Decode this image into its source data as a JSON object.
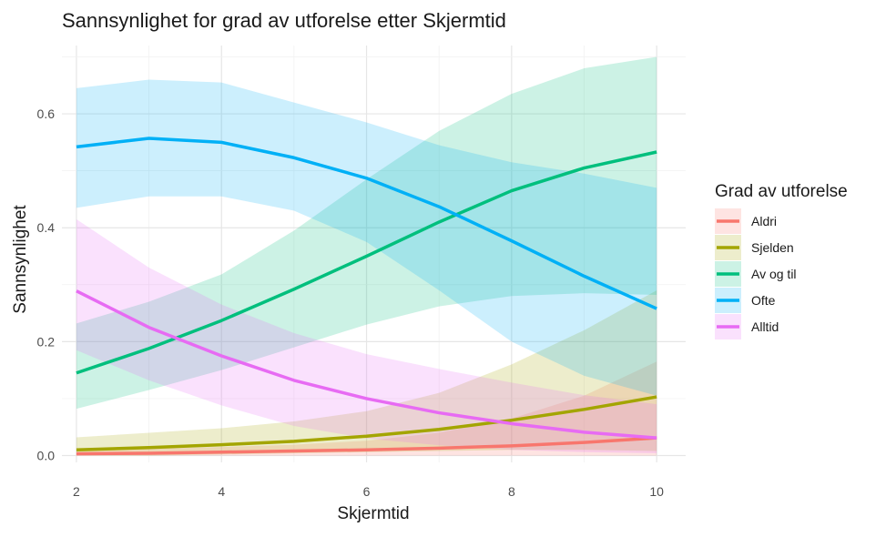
{
  "chart_data": {
    "type": "line",
    "title": "Sannsynlighet for grad av utforelse etter Skjermtid",
    "xlabel": "Skjermtid",
    "ylabel": "Sannsynlighet",
    "xlim": [
      1.8,
      10.4
    ],
    "ylim": [
      -0.012,
      0.72
    ],
    "xticks": [
      2,
      4,
      6,
      8,
      10
    ],
    "yticks": [
      0.0,
      0.2,
      0.4,
      0.6
    ],
    "ytick_labels": [
      "0.0",
      "0.2",
      "0.4",
      "0.6"
    ],
    "grid": true,
    "legend": {
      "title": "Grad av utforelse",
      "position": "right"
    },
    "x": [
      2,
      3,
      4,
      5,
      6,
      7,
      8,
      9,
      10
    ],
    "series": [
      {
        "name": "Aldri",
        "color": "#F8766D",
        "values": [
          0.003,
          0.004,
          0.006,
          0.008,
          0.01,
          0.013,
          0.017,
          0.023,
          0.031
        ],
        "lower": [
          0.0,
          0.0,
          0.0,
          0.0,
          0.0,
          0.0,
          0.0,
          0.0,
          0.0
        ],
        "upper": [
          0.01,
          0.012,
          0.015,
          0.019,
          0.026,
          0.04,
          0.065,
          0.105,
          0.165
        ]
      },
      {
        "name": "Sjelden",
        "color": "#A3A500",
        "values": [
          0.01,
          0.014,
          0.019,
          0.025,
          0.034,
          0.046,
          0.062,
          0.081,
          0.103
        ],
        "lower": [
          0.0,
          0.0,
          0.002,
          0.004,
          0.006,
          0.008,
          0.01,
          0.01,
          0.008
        ],
        "upper": [
          0.032,
          0.04,
          0.048,
          0.06,
          0.078,
          0.11,
          0.16,
          0.22,
          0.29
        ]
      },
      {
        "name": "Av og til",
        "color": "#00BF7D",
        "values": [
          0.145,
          0.188,
          0.237,
          0.292,
          0.35,
          0.41,
          0.465,
          0.505,
          0.533
        ],
        "lower": [
          0.082,
          0.115,
          0.15,
          0.19,
          0.23,
          0.262,
          0.28,
          0.285,
          0.282
        ],
        "upper": [
          0.232,
          0.27,
          0.318,
          0.395,
          0.485,
          0.57,
          0.635,
          0.68,
          0.7
        ]
      },
      {
        "name": "Ofte",
        "color": "#00B0F6",
        "values": [
          0.542,
          0.557,
          0.55,
          0.523,
          0.487,
          0.437,
          0.377,
          0.315,
          0.258
        ],
        "lower": [
          0.435,
          0.455,
          0.455,
          0.43,
          0.375,
          0.29,
          0.2,
          0.14,
          0.105
        ],
        "upper": [
          0.645,
          0.66,
          0.655,
          0.62,
          0.585,
          0.545,
          0.515,
          0.495,
          0.47
        ]
      },
      {
        "name": "Alltid",
        "color": "#E76BF3",
        "values": [
          0.289,
          0.225,
          0.175,
          0.132,
          0.1,
          0.075,
          0.056,
          0.041,
          0.031
        ],
        "lower": [
          0.185,
          0.132,
          0.088,
          0.052,
          0.03,
          0.018,
          0.01,
          0.006,
          0.004
        ],
        "upper": [
          0.415,
          0.33,
          0.265,
          0.215,
          0.178,
          0.152,
          0.128,
          0.106,
          0.09
        ]
      }
    ]
  }
}
